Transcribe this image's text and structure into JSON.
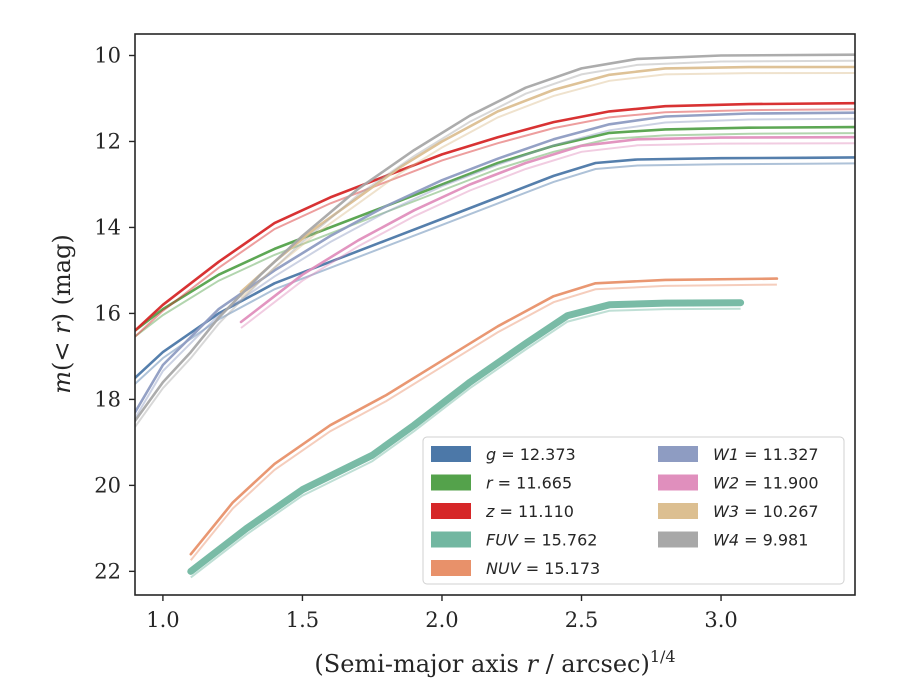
{
  "chart_data": {
    "type": "line",
    "title": "",
    "xlabel": {
      "pre": "(Semi-major axis ",
      "var": "r",
      "post": " / arcsec)",
      "sup": "1/4"
    },
    "ylabel": {
      "var": "m",
      "open": "(",
      "lt": "< ",
      "r": "r",
      "close": ") (mag)"
    },
    "xlim": [
      0.9,
      3.48
    ],
    "ylim": [
      22.55,
      9.5
    ],
    "y_inverted": true,
    "x_ticks": [
      "1.0",
      "1.5",
      "2.0",
      "2.5",
      "3.0"
    ],
    "y_ticks": [
      "10",
      "12",
      "14",
      "16",
      "18",
      "20",
      "22"
    ],
    "grid": false,
    "legend_position": "lower-right",
    "legend": {
      "col1": [
        "g",
        "r",
        "z",
        "FUV",
        "NUV"
      ],
      "col2": [
        "W1",
        "W2",
        "W3",
        "W4"
      ]
    },
    "series": [
      {
        "name": "g",
        "label_value": "= 12.373",
        "color": "#4c78a8",
        "x": [
          0.9,
          1.0,
          1.2,
          1.4,
          1.6,
          1.8,
          2.0,
          2.2,
          2.4,
          2.55,
          2.7,
          3.0,
          3.3,
          3.48
        ],
        "y": [
          17.5,
          16.9,
          16.0,
          15.3,
          14.8,
          14.3,
          13.8,
          13.3,
          12.8,
          12.5,
          12.42,
          12.39,
          12.38,
          12.37
        ]
      },
      {
        "name": "r",
        "label_value": "= 11.665",
        "color": "#54a24b",
        "x": [
          0.9,
          1.0,
          1.2,
          1.4,
          1.6,
          1.8,
          2.0,
          2.2,
          2.4,
          2.6,
          2.8,
          3.1,
          3.48
        ],
        "y": [
          16.4,
          15.9,
          15.1,
          14.5,
          14.0,
          13.5,
          13.0,
          12.5,
          12.1,
          11.8,
          11.72,
          11.68,
          11.665
        ]
      },
      {
        "name": "z",
        "label_value": "= 11.110",
        "color": "#d62728",
        "x": [
          0.9,
          1.0,
          1.2,
          1.4,
          1.6,
          1.8,
          2.0,
          2.2,
          2.4,
          2.6,
          2.8,
          3.1,
          3.48
        ],
        "y": [
          16.4,
          15.8,
          14.8,
          13.9,
          13.3,
          12.8,
          12.3,
          11.9,
          11.55,
          11.3,
          11.18,
          11.13,
          11.11
        ]
      },
      {
        "name": "FUV",
        "label_value": "= 15.762",
        "color": "#72b7a1",
        "x": [
          1.1,
          1.3,
          1.5,
          1.75,
          1.9,
          2.1,
          2.3,
          2.45,
          2.6,
          2.8,
          3.07
        ],
        "y": [
          22.0,
          21.0,
          20.1,
          19.3,
          18.6,
          17.6,
          16.7,
          16.05,
          15.8,
          15.76,
          15.75
        ]
      },
      {
        "name": "NUV",
        "label_value": "= 15.173",
        "color": "#e8916a",
        "x": [
          1.1,
          1.25,
          1.4,
          1.6,
          1.8,
          2.0,
          2.2,
          2.4,
          2.55,
          2.8,
          3.2
        ],
        "y": [
          21.6,
          20.4,
          19.5,
          18.6,
          17.9,
          17.1,
          16.3,
          15.6,
          15.3,
          15.22,
          15.19
        ]
      },
      {
        "name": "W1",
        "label_value": "= 11.327",
        "color": "#8e9cc2",
        "x": [
          0.9,
          1.0,
          1.2,
          1.4,
          1.6,
          1.8,
          2.0,
          2.2,
          2.4,
          2.6,
          2.8,
          3.1,
          3.48
        ],
        "y": [
          18.3,
          17.2,
          15.9,
          15.0,
          14.2,
          13.5,
          12.9,
          12.4,
          11.95,
          11.6,
          11.42,
          11.35,
          11.33
        ]
      },
      {
        "name": "W2",
        "label_value": "= 11.900",
        "color": "#e08fbd",
        "x": [
          1.28,
          1.4,
          1.5,
          1.7,
          1.9,
          2.1,
          2.3,
          2.5,
          2.7,
          3.0,
          3.48
        ],
        "y": [
          16.2,
          15.6,
          15.1,
          14.3,
          13.6,
          13.0,
          12.5,
          12.1,
          11.95,
          11.91,
          11.9
        ]
      },
      {
        "name": "W3",
        "label_value": "= 10.267",
        "color": "#dcbf91",
        "x": [
          1.28,
          1.4,
          1.55,
          1.7,
          1.85,
          2.0,
          2.2,
          2.4,
          2.6,
          2.8,
          3.1,
          3.48
        ],
        "y": [
          15.5,
          14.8,
          14.0,
          13.3,
          12.6,
          12.0,
          11.3,
          10.8,
          10.45,
          10.3,
          10.27,
          10.267
        ]
      },
      {
        "name": "W4",
        "label_value": "= 9.981",
        "color": "#a8a8a8",
        "x": [
          0.9,
          1.0,
          1.1,
          1.2,
          1.35,
          1.5,
          1.7,
          1.9,
          2.1,
          2.3,
          2.5,
          2.7,
          3.0,
          3.48
        ],
        "y": [
          18.5,
          17.6,
          16.9,
          16.1,
          15.1,
          14.2,
          13.1,
          12.2,
          11.4,
          10.75,
          10.3,
          10.08,
          10.0,
          9.981
        ]
      }
    ]
  }
}
